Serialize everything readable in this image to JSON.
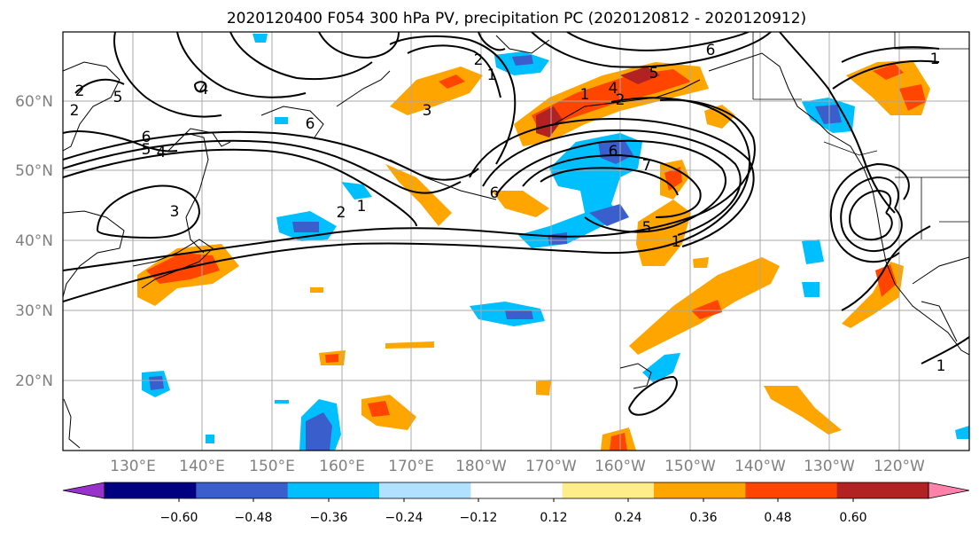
{
  "title": "2020120400 F054 300 hPa PV, precipitation PC (2020120812 - 2020120912)",
  "lat_labels": [
    "60°N",
    "50°N",
    "40°N",
    "30°N",
    "20°N"
  ],
  "lon_labels": [
    "130°E",
    "140°E",
    "150°E",
    "160°E",
    "170°E",
    "180°W",
    "170°W",
    "160°W",
    "150°W",
    "140°W",
    "130°W",
    "120°W"
  ],
  "colorbar": {
    "ticks": [
      "−0.60",
      "−0.48",
      "−0.36",
      "−0.24",
      "−0.12",
      "0.12",
      "0.24",
      "0.36",
      "0.48",
      "0.60"
    ],
    "colors": [
      "#9932cc",
      "#000080",
      "#3a5fcd",
      "#00bfff",
      "#b0e2ff",
      "#ffffff",
      "#ffec8b",
      "#ffa500",
      "#ff4500",
      "#b22222",
      "#ff82ab"
    ]
  },
  "contour_labels": [
    "2",
    "4",
    "5",
    "6",
    "4",
    "2",
    "5",
    "6",
    "3",
    "2",
    "1",
    "6",
    "3",
    "2",
    "1",
    "4",
    "2",
    "1",
    "5",
    "6",
    "7",
    "5",
    "1",
    "6",
    "1",
    "1"
  ]
}
